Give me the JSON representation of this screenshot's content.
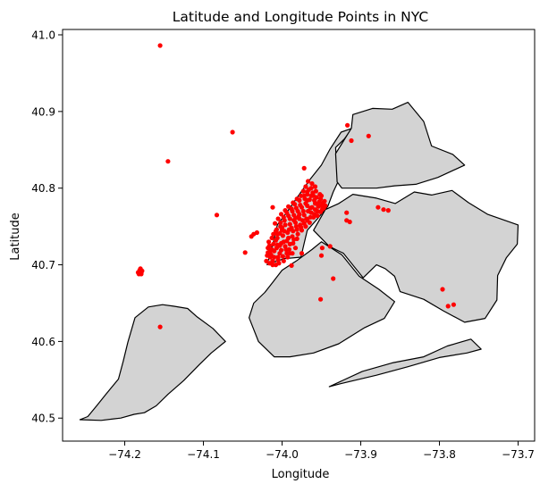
{
  "chart_data": {
    "type": "scatter",
    "title": "Latitude and Longitude Points in NYC",
    "xlabel": "Longitude",
    "ylabel": "Latitude",
    "xlim": [
      -74.279,
      -73.679
    ],
    "ylim": [
      40.47,
      41.007
    ],
    "x_ticks": [
      -74.2,
      -74.1,
      -74.0,
      -73.9,
      -73.8,
      -73.7
    ],
    "x_tick_labels": [
      "−74.2",
      "−74.1",
      "−74.0",
      "−73.9",
      "−73.8",
      "−73.7"
    ],
    "y_ticks": [
      40.5,
      40.6,
      40.7,
      40.8,
      40.9,
      41.0
    ],
    "y_tick_labels": [
      "40.5",
      "40.6",
      "40.7",
      "40.8",
      "40.9",
      "41.0"
    ],
    "grid": false,
    "legend": "none",
    "colors": {
      "points": "#ff0000",
      "land": "#d3d3d3",
      "border": "#000000"
    },
    "boroughs": [
      {
        "name": "staten-island",
        "coords": [
          [
            -74.257,
            40.498
          ],
          [
            -74.247,
            40.502
          ],
          [
            -74.235,
            40.517
          ],
          [
            -74.224,
            40.531
          ],
          [
            -74.208,
            40.551
          ],
          [
            -74.202,
            40.574
          ],
          [
            -74.196,
            40.599
          ],
          [
            -74.187,
            40.631
          ],
          [
            -74.17,
            40.645
          ],
          [
            -74.152,
            40.648
          ],
          [
            -74.138,
            40.646
          ],
          [
            -74.12,
            40.643
          ],
          [
            -74.108,
            40.632
          ],
          [
            -74.088,
            40.617
          ],
          [
            -74.072,
            40.6
          ],
          [
            -74.09,
            40.585
          ],
          [
            -74.105,
            40.57
          ],
          [
            -74.125,
            40.549
          ],
          [
            -74.145,
            40.531
          ],
          [
            -74.16,
            40.516
          ],
          [
            -74.175,
            40.507
          ],
          [
            -74.188,
            40.505
          ],
          [
            -74.205,
            40.5
          ],
          [
            -74.23,
            40.497
          ]
        ]
      },
      {
        "name": "manhattan",
        "coords": [
          [
            -74.019,
            40.7
          ],
          [
            -74.012,
            40.703
          ],
          [
            -73.997,
            40.708
          ],
          [
            -73.976,
            40.71
          ],
          [
            -73.972,
            40.728
          ],
          [
            -73.968,
            40.745
          ],
          [
            -73.955,
            40.76
          ],
          [
            -73.942,
            40.776
          ],
          [
            -73.935,
            40.795
          ],
          [
            -73.929,
            40.808
          ],
          [
            -73.931,
            40.834
          ],
          [
            -73.932,
            40.853
          ],
          [
            -73.921,
            40.864
          ],
          [
            -73.911,
            40.878
          ],
          [
            -73.925,
            40.873
          ],
          [
            -73.939,
            40.851
          ],
          [
            -73.95,
            40.83
          ],
          [
            -73.964,
            40.812
          ],
          [
            -73.98,
            40.789
          ],
          [
            -73.993,
            40.77
          ],
          [
            -74.006,
            40.752
          ],
          [
            -74.011,
            40.73
          ],
          [
            -74.016,
            40.712
          ]
        ]
      },
      {
        "name": "bronx",
        "coords": [
          [
            -73.912,
            40.878
          ],
          [
            -73.91,
            40.896
          ],
          [
            -73.885,
            40.904
          ],
          [
            -73.86,
            40.903
          ],
          [
            -73.84,
            40.912
          ],
          [
            -73.82,
            40.887
          ],
          [
            -73.81,
            40.855
          ],
          [
            -73.783,
            40.844
          ],
          [
            -73.768,
            40.83
          ],
          [
            -73.802,
            40.814
          ],
          [
            -73.83,
            40.805
          ],
          [
            -73.857,
            40.803
          ],
          [
            -73.88,
            40.8
          ],
          [
            -73.905,
            40.8
          ],
          [
            -73.924,
            40.8
          ],
          [
            -73.93,
            40.808
          ],
          [
            -73.932,
            40.845
          ]
        ]
      },
      {
        "name": "queens",
        "coords": [
          [
            -73.96,
            40.745
          ],
          [
            -73.945,
            40.772
          ],
          [
            -73.928,
            40.78
          ],
          [
            -73.91,
            40.792
          ],
          [
            -73.88,
            40.787
          ],
          [
            -73.856,
            40.78
          ],
          [
            -73.832,
            40.795
          ],
          [
            -73.81,
            40.791
          ],
          [
            -73.784,
            40.797
          ],
          [
            -73.763,
            40.781
          ],
          [
            -73.739,
            40.766
          ],
          [
            -73.7,
            40.752
          ],
          [
            -73.701,
            40.727
          ],
          [
            -73.715,
            40.709
          ],
          [
            -73.726,
            40.686
          ],
          [
            -73.727,
            40.654
          ],
          [
            -73.742,
            40.63
          ],
          [
            -73.768,
            40.625
          ],
          [
            -73.795,
            40.64
          ],
          [
            -73.82,
            40.655
          ],
          [
            -73.85,
            40.665
          ],
          [
            -73.857,
            40.685
          ],
          [
            -73.869,
            40.695
          ],
          [
            -73.88,
            40.7
          ],
          [
            -73.897,
            40.683
          ],
          [
            -73.915,
            40.706
          ],
          [
            -73.922,
            40.715
          ],
          [
            -73.94,
            40.724
          ]
        ]
      },
      {
        "name": "brooklyn",
        "coords": [
          [
            -74.042,
            40.631
          ],
          [
            -74.036,
            40.65
          ],
          [
            -74.022,
            40.664
          ],
          [
            -74.012,
            40.677
          ],
          [
            -74.0,
            40.693
          ],
          [
            -73.982,
            40.705
          ],
          [
            -73.962,
            40.72
          ],
          [
            -73.95,
            40.73
          ],
          [
            -73.924,
            40.713
          ],
          [
            -73.902,
            40.685
          ],
          [
            -73.877,
            40.668
          ],
          [
            -73.857,
            40.652
          ],
          [
            -73.87,
            40.63
          ],
          [
            -73.895,
            40.618
          ],
          [
            -73.928,
            40.597
          ],
          [
            -73.96,
            40.585
          ],
          [
            -73.99,
            40.58
          ],
          [
            -74.01,
            40.58
          ],
          [
            -74.03,
            40.6
          ]
        ]
      },
      {
        "name": "rockaway",
        "coords": [
          [
            -73.94,
            40.541
          ],
          [
            -73.898,
            40.561
          ],
          [
            -73.86,
            40.572
          ],
          [
            -73.82,
            40.58
          ],
          [
            -73.79,
            40.594
          ],
          [
            -73.76,
            40.603
          ],
          [
            -73.747,
            40.59
          ],
          [
            -73.765,
            40.585
          ],
          [
            -73.8,
            40.579
          ],
          [
            -73.84,
            40.567
          ],
          [
            -73.88,
            40.556
          ],
          [
            -73.925,
            40.545
          ]
        ]
      }
    ],
    "points": [
      [
        -74.155,
        40.986
      ],
      [
        -74.063,
        40.873
      ],
      [
        -74.145,
        40.835
      ],
      [
        -74.083,
        40.765
      ],
      [
        -74.155,
        40.619
      ],
      [
        -73.917,
        40.882
      ],
      [
        -73.912,
        40.862
      ],
      [
        -73.89,
        40.868
      ],
      [
        -73.972,
        40.826
      ],
      [
        -74.183,
        40.69
      ],
      [
        -74.181,
        40.693
      ],
      [
        -74.179,
        40.69
      ],
      [
        -74.18,
        40.695
      ],
      [
        -74.178,
        40.692
      ],
      [
        -74.182,
        40.688
      ],
      [
        -74.179,
        40.688
      ],
      [
        -74.047,
        40.716
      ],
      [
        -74.039,
        40.737
      ],
      [
        -74.036,
        40.74
      ],
      [
        -74.032,
        40.742
      ],
      [
        -74.012,
        40.775
      ],
      [
        -73.967,
        40.809
      ],
      [
        -73.878,
        40.775
      ],
      [
        -73.871,
        40.772
      ],
      [
        -73.865,
        40.771
      ],
      [
        -73.918,
        40.768
      ],
      [
        -73.918,
        40.758
      ],
      [
        -73.914,
        40.756
      ],
      [
        -73.949,
        40.722
      ],
      [
        -73.939,
        40.724
      ],
      [
        -73.95,
        40.712
      ],
      [
        -73.935,
        40.682
      ],
      [
        -73.951,
        40.655
      ],
      [
        -73.796,
        40.668
      ],
      [
        -73.789,
        40.646
      ],
      [
        -73.782,
        40.648
      ],
      [
        -73.988,
        40.699
      ],
      [
        -73.975,
        40.715
      ],
      [
        -74.008,
        40.7
      ],
      [
        -74.012,
        40.705
      ],
      [
        -74.005,
        40.71
      ],
      [
        -74.01,
        40.718
      ],
      [
        -74.003,
        40.725
      ],
      [
        -74.008,
        40.732
      ],
      [
        -73.998,
        40.73
      ],
      [
        -73.995,
        40.72
      ],
      [
        -73.99,
        40.727
      ],
      [
        -73.985,
        40.733
      ],
      [
        -74.006,
        40.74
      ],
      [
        -74.0,
        40.745
      ],
      [
        -73.993,
        40.742
      ],
      [
        -73.988,
        40.748
      ],
      [
        -73.983,
        40.755
      ],
      [
        -73.978,
        40.76
      ],
      [
        -73.972,
        40.765
      ],
      [
        -73.967,
        40.77
      ],
      [
        -73.962,
        40.775
      ],
      [
        -73.958,
        40.78
      ],
      [
        -73.953,
        40.782
      ],
      [
        -73.95,
        40.777
      ],
      [
        -73.955,
        40.77
      ],
      [
        -73.96,
        40.762
      ],
      [
        -73.965,
        40.755
      ],
      [
        -73.97,
        40.75
      ],
      [
        -73.975,
        40.745
      ],
      [
        -73.98,
        40.74
      ],
      [
        -73.982,
        40.75
      ],
      [
        -73.977,
        40.752
      ],
      [
        -73.99,
        40.76
      ],
      [
        -73.985,
        40.765
      ],
      [
        -73.98,
        40.77
      ],
      [
        -73.975,
        40.775
      ],
      [
        -73.97,
        40.78
      ],
      [
        -73.965,
        40.785
      ],
      [
        -73.96,
        40.79
      ],
      [
        -73.972,
        40.79
      ],
      [
        -73.968,
        40.795
      ],
      [
        -73.963,
        40.8
      ],
      [
        -73.996,
        40.752
      ],
      [
        -74.002,
        40.755
      ],
      [
        -73.998,
        40.762
      ],
      [
        -73.994,
        40.768
      ],
      [
        -73.988,
        40.773
      ],
      [
        -73.984,
        40.779
      ],
      [
        -73.978,
        40.784
      ],
      [
        -74.003,
        40.715
      ],
      [
        -74.015,
        40.71
      ],
      [
        -74.013,
        40.72
      ],
      [
        -74.017,
        40.73
      ],
      [
        -74.011,
        40.74
      ],
      [
        -74.016,
        40.725
      ],
      [
        -74.006,
        40.735
      ],
      [
        -73.999,
        40.738
      ],
      [
        -73.992,
        40.735
      ],
      [
        -73.986,
        40.728
      ],
      [
        -73.983,
        40.722
      ],
      [
        -73.987,
        40.715
      ],
      [
        -73.993,
        40.71
      ],
      [
        -73.998,
        40.705
      ],
      [
        -74.004,
        40.702
      ],
      [
        -74.014,
        40.713
      ],
      [
        -74.018,
        40.716
      ],
      [
        -74.012,
        40.7
      ],
      [
        -74.02,
        40.705
      ],
      [
        -74.0,
        40.748
      ],
      [
        -73.99,
        40.753
      ],
      [
        -73.985,
        40.758
      ],
      [
        -73.979,
        40.763
      ],
      [
        -73.974,
        40.758
      ],
      [
        -73.969,
        40.76
      ],
      [
        -73.963,
        40.768
      ],
      [
        -73.958,
        40.772
      ],
      [
        -73.954,
        40.776
      ],
      [
        -73.951,
        40.786
      ],
      [
        -73.956,
        40.788
      ],
      [
        -73.961,
        40.794
      ],
      [
        -73.966,
        40.798
      ],
      [
        -73.97,
        40.802
      ],
      [
        -73.976,
        40.79
      ],
      [
        -73.981,
        40.786
      ],
      [
        -73.986,
        40.781
      ],
      [
        -73.992,
        40.776
      ],
      [
        -73.996,
        40.771
      ],
      [
        -74.001,
        40.766
      ],
      [
        -74.005,
        40.76
      ],
      [
        -74.009,
        40.754
      ],
      [
        -74.007,
        40.746
      ],
      [
        -74.003,
        40.741
      ],
      [
        -73.997,
        40.744
      ],
      [
        -73.991,
        40.746
      ],
      [
        -73.986,
        40.744
      ],
      [
        -73.981,
        40.746
      ],
      [
        -73.976,
        40.749
      ],
      [
        -73.972,
        40.754
      ],
      [
        -73.968,
        40.758
      ],
      [
        -73.964,
        40.762
      ],
      [
        -73.959,
        40.766
      ],
      [
        -73.955,
        40.764
      ],
      [
        -73.951,
        40.769
      ],
      [
        -73.947,
        40.774
      ],
      [
        -73.948,
        40.781
      ],
      [
        -73.952,
        40.792
      ],
      [
        -73.957,
        40.796
      ],
      [
        -73.962,
        40.806
      ],
      [
        -73.968,
        40.784
      ],
      [
        -73.973,
        40.77
      ],
      [
        -73.978,
        40.766
      ],
      [
        -73.983,
        40.761
      ],
      [
        -74.013,
        40.735
      ],
      [
        -74.018,
        40.722
      ],
      [
        -74.011,
        40.727
      ],
      [
        -74.007,
        40.722
      ],
      [
        -74.001,
        40.719
      ],
      [
        -73.996,
        40.724
      ],
      [
        -73.991,
        40.72
      ],
      [
        -73.987,
        40.737
      ],
      [
        -73.981,
        40.734
      ],
      [
        -73.994,
        40.731
      ],
      [
        -74.001,
        40.728
      ],
      [
        -74.006,
        40.726
      ],
      [
        -74.01,
        40.71
      ],
      [
        -74.005,
        40.706
      ],
      [
        -73.999,
        40.711
      ],
      [
        -73.994,
        40.715
      ],
      [
        -73.99,
        40.715
      ],
      [
        -74.016,
        40.702
      ],
      [
        -74.019,
        40.712
      ],
      [
        -74.015,
        40.718
      ],
      [
        -73.964,
        40.774
      ],
      [
        -73.968,
        40.777
      ],
      [
        -73.971,
        40.786
      ],
      [
        -73.959,
        40.784
      ],
      [
        -73.955,
        40.779
      ],
      [
        -73.949,
        40.772
      ],
      [
        -73.945,
        40.777
      ],
      [
        -73.946,
        40.783
      ],
      [
        -73.95,
        40.79
      ],
      [
        -73.958,
        40.802
      ],
      [
        -73.963,
        40.79
      ],
      [
        -73.968,
        40.792
      ],
      [
        -73.973,
        40.796
      ],
      [
        -73.977,
        40.778
      ],
      [
        -73.982,
        40.774
      ],
      [
        -73.987,
        40.77
      ],
      [
        -73.992,
        40.764
      ],
      [
        -73.997,
        40.758
      ],
      [
        -74.002,
        40.75
      ],
      [
        -74.008,
        40.744
      ]
    ]
  }
}
